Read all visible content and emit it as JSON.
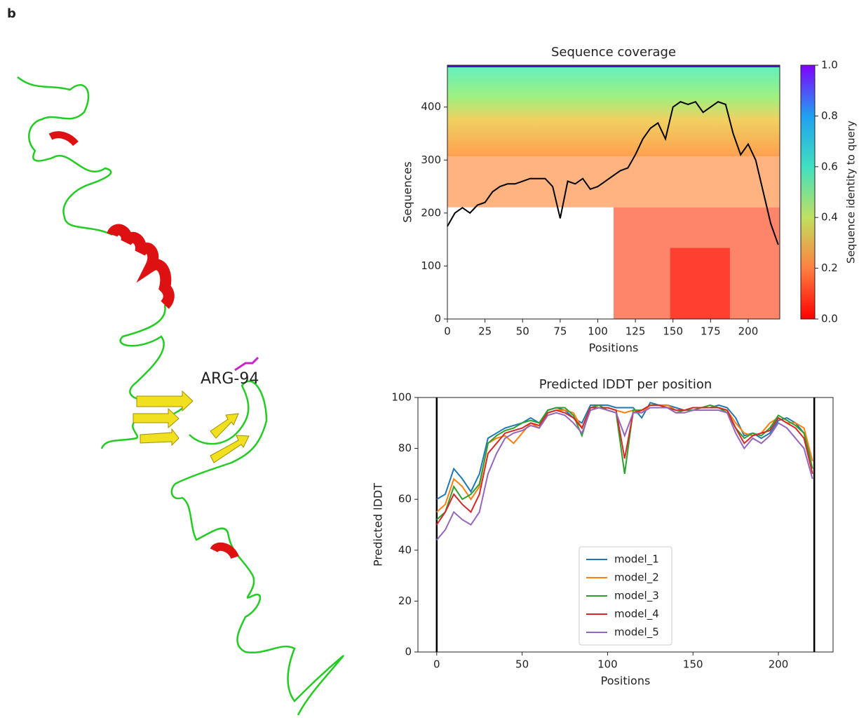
{
  "panel_label": "b",
  "structure": {
    "label": "ARG-94"
  },
  "chart_data": [
    {
      "type": "heatmap",
      "title": "Sequence coverage",
      "x_label": "Positions",
      "y_label": "Sequences",
      "xlim": [
        0,
        221
      ],
      "ylim": [
        0,
        479
      ],
      "xticks": [
        0,
        25,
        50,
        75,
        100,
        125,
        150,
        175,
        200
      ],
      "yticks": [
        0,
        100,
        200,
        300,
        400
      ],
      "colorbar_label": "Sequence identity to query",
      "colorbar_lim": [
        0,
        1
      ],
      "colorbar_ticks": [
        {
          "value": 0,
          "label": "0.0"
        },
        {
          "value": 0.2,
          "label": "0.2"
        },
        {
          "value": 0.4,
          "label": "0.4"
        },
        {
          "value": 0.6,
          "label": "0.6"
        },
        {
          "value": 0.8,
          "label": "0.8"
        },
        {
          "value": 1,
          "label": "1.0"
        }
      ],
      "line_color": "#000000",
      "x": [
        0,
        5,
        10,
        15,
        20,
        25,
        30,
        35,
        40,
        45,
        50,
        55,
        60,
        65,
        70,
        75,
        80,
        85,
        90,
        95,
        100,
        105,
        110,
        115,
        120,
        125,
        130,
        135,
        140,
        145,
        150,
        155,
        160,
        165,
        170,
        175,
        180,
        185,
        190,
        195,
        200,
        205,
        210,
        215,
        220
      ],
      "values": [
        175,
        200,
        210,
        200,
        215,
        220,
        240,
        250,
        255,
        255,
        260,
        265,
        265,
        265,
        250,
        190,
        260,
        255,
        265,
        245,
        250,
        260,
        270,
        280,
        285,
        310,
        340,
        360,
        370,
        340,
        400,
        410,
        405,
        410,
        390,
        400,
        410,
        405,
        350,
        310,
        330,
        300,
        240,
        180,
        140
      ]
    },
    {
      "type": "line",
      "title": "Predicted lDDT per position",
      "x_label": "Positions",
      "y_label": "Predicted lDDT",
      "xlim": [
        -11,
        232
      ],
      "ylim": [
        0,
        100
      ],
      "xticks": [
        0,
        50,
        100,
        150,
        200
      ],
      "yticks": [
        0,
        20,
        40,
        60,
        80,
        100
      ],
      "vlines": [
        0,
        221
      ],
      "legend": "lower center",
      "x": [
        0,
        5,
        10,
        15,
        20,
        25,
        30,
        35,
        40,
        45,
        50,
        55,
        60,
        65,
        70,
        75,
        80,
        85,
        90,
        95,
        100,
        105,
        110,
        115,
        120,
        125,
        130,
        135,
        140,
        145,
        150,
        155,
        160,
        165,
        170,
        175,
        180,
        185,
        190,
        195,
        200,
        205,
        210,
        215,
        220
      ],
      "series": [
        {
          "name": "model_1",
          "color": "#1f77b4",
          "values": [
            60,
            62,
            72,
            68,
            63,
            70,
            84,
            86,
            88,
            89,
            90,
            92,
            90,
            95,
            96,
            95,
            92,
            90,
            97,
            97,
            97,
            96,
            96,
            96,
            92,
            98,
            97,
            97,
            96,
            95,
            96,
            96,
            96,
            97,
            96,
            92,
            85,
            86,
            84,
            86,
            91,
            92,
            90,
            86,
            75
          ]
        },
        {
          "name": "model_2",
          "color": "#ff7f0e",
          "values": [
            55,
            58,
            68,
            65,
            60,
            65,
            82,
            84,
            85,
            82,
            86,
            90,
            88,
            94,
            95,
            95,
            94,
            88,
            96,
            96,
            96,
            95,
            94,
            95,
            94,
            97,
            97,
            97,
            95,
            95,
            96,
            96,
            96,
            96,
            95,
            90,
            86,
            85,
            86,
            90,
            92,
            90,
            90,
            88,
            75
          ]
        },
        {
          "name": "model_3",
          "color": "#2ca02c",
          "values": [
            52,
            55,
            65,
            60,
            62,
            66,
            82,
            85,
            87,
            88,
            90,
            91,
            90,
            95,
            96,
            96,
            93,
            85,
            96,
            97,
            95,
            94,
            70,
            95,
            95,
            97,
            97,
            96,
            94,
            95,
            95,
            96,
            97,
            96,
            94,
            88,
            84,
            86,
            85,
            88,
            93,
            91,
            89,
            86,
            72
          ]
        },
        {
          "name": "model_4",
          "color": "#d62728",
          "values": [
            50,
            55,
            62,
            58,
            55,
            62,
            78,
            82,
            86,
            87,
            88,
            90,
            89,
            94,
            95,
            94,
            92,
            88,
            96,
            96,
            96,
            95,
            76,
            94,
            95,
            97,
            97,
            96,
            95,
            95,
            96,
            96,
            96,
            96,
            95,
            88,
            82,
            85,
            86,
            87,
            92,
            90,
            88,
            84,
            70
          ]
        },
        {
          "name": "model_5",
          "color": "#9467bd",
          "values": [
            44,
            48,
            55,
            52,
            50,
            55,
            70,
            78,
            84,
            86,
            87,
            89,
            88,
            93,
            94,
            93,
            90,
            86,
            95,
            96,
            95,
            94,
            85,
            94,
            94,
            96,
            96,
            96,
            94,
            94,
            95,
            95,
            95,
            95,
            94,
            86,
            80,
            84,
            82,
            85,
            90,
            88,
            84,
            80,
            68
          ]
        }
      ]
    }
  ]
}
